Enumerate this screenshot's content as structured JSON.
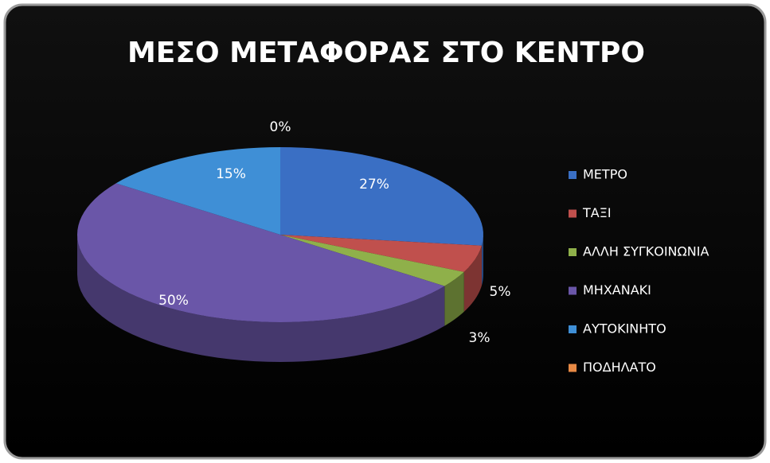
{
  "chart_data": {
    "type": "pie",
    "title": "ΜΕΣΟ ΜΕΤΑΦΟΡΑΣ ΣΤΟ ΚΕΝΤΡΟ",
    "categories": [
      "ΜΕΤΡΟ",
      "ΤΑΞΙ",
      "ΑΛΛΗ ΣΥΓΚΟΙΝΩΝΙΑ",
      "ΜΗΧΑΝΑΚΙ",
      "ΑΥΤΟΚΙΝΗΤΟ",
      "ΠΟΔΗΛΑΤΟ"
    ],
    "values": [
      27,
      5,
      3,
      50,
      15,
      0
    ],
    "value_labels": [
      "27%",
      "5%",
      "3%",
      "50%",
      "15%",
      "0%"
    ],
    "colors": [
      "#3a6fc4",
      "#c0504d",
      "#8fb04a",
      "#6a56a8",
      "#3f8fd6",
      "#e88a45"
    ]
  }
}
